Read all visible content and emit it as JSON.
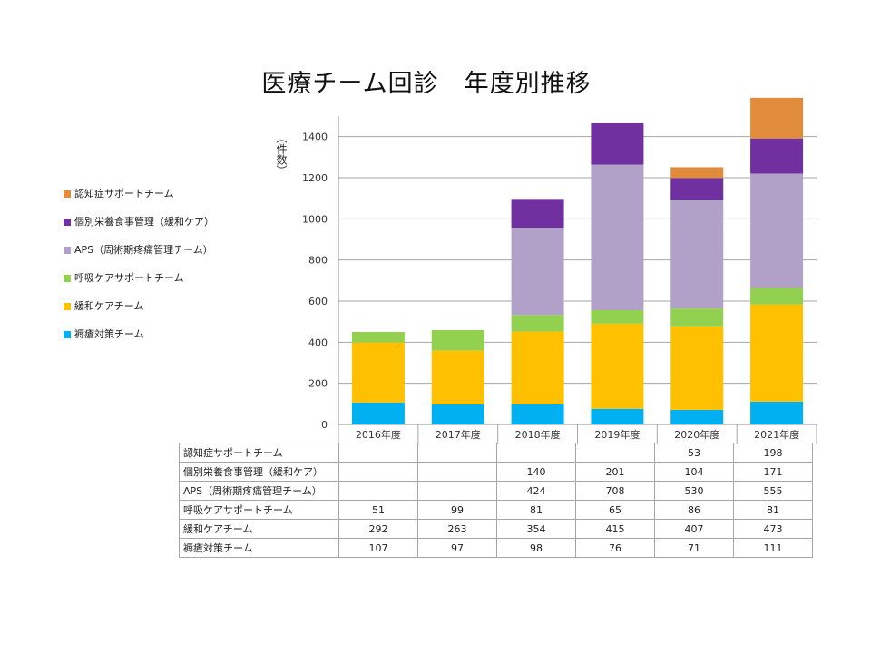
{
  "chart_data": {
    "type": "bar",
    "stacked": true,
    "title": "医療チーム回診　年度別推移",
    "ylabel": "（件数）",
    "xlabel": "",
    "ylim": [
      0,
      1500
    ],
    "yticks": [
      0,
      200,
      400,
      600,
      800,
      1000,
      1200,
      1400
    ],
    "grid": true,
    "legend_position": "left",
    "categories": [
      "2016年度",
      "2017年度",
      "2018年度",
      "2019年度",
      "2020年度",
      "2021年度"
    ],
    "series": [
      {
        "name": "褥瘡対策チーム",
        "color": "#00b0f0",
        "values": [
          107,
          97,
          98,
          76,
          71,
          111
        ]
      },
      {
        "name": "緩和ケアチーム",
        "color": "#ffc000",
        "values": [
          292,
          263,
          354,
          415,
          407,
          473
        ]
      },
      {
        "name": "呼吸ケアサポートチーム",
        "color": "#92d050",
        "values": [
          51,
          99,
          81,
          65,
          86,
          81
        ]
      },
      {
        "name": "APS（周術期疼痛管理チーム）",
        "color": "#b1a0c7",
        "values": [
          null,
          null,
          424,
          708,
          530,
          555
        ]
      },
      {
        "name": "個別栄養食事管理（緩和ケア）",
        "color": "#7030a0",
        "values": [
          null,
          null,
          140,
          201,
          104,
          171
        ]
      },
      {
        "name": "認知症サポートチーム",
        "color": "#e08c3c",
        "values": [
          null,
          null,
          null,
          null,
          53,
          198
        ]
      }
    ]
  }
}
